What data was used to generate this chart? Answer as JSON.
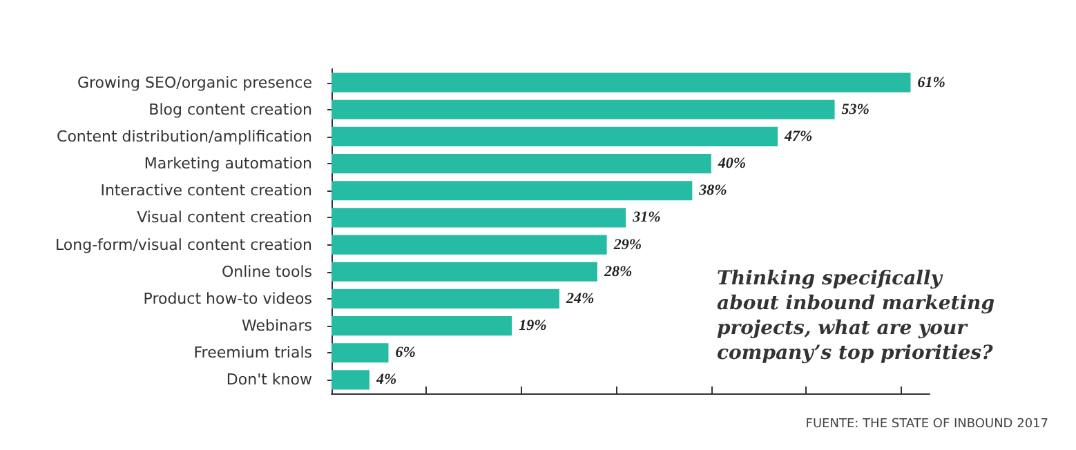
{
  "chart_data": {
    "type": "bar",
    "orientation": "horizontal",
    "title": "Thinking specifically\nabout inbound marketing\nprojects, what are your\ncompany’s top priorities?",
    "categories": [
      "Growing SEO/organic presence",
      "Blog content creation",
      "Content distribution/amplification",
      "Marketing automation",
      "Interactive content creation",
      "Visual content creation",
      "Long-form/visual content creation",
      "Online tools",
      "Product how-to videos",
      "Webinars",
      "Freemium trials",
      "Don't know"
    ],
    "values": [
      61,
      53,
      47,
      40,
      38,
      31,
      29,
      28,
      24,
      19,
      6,
      4
    ],
    "value_labels": [
      "61%",
      "53%",
      "47%",
      "40%",
      "38%",
      "31%",
      "29%",
      "28%",
      "24%",
      "19%",
      "6%",
      "4%"
    ],
    "color": "#26bba3",
    "xlim": [
      0,
      63
    ],
    "xticks": [
      {
        "value": 0,
        "label": null
      },
      {
        "value": 10,
        "label": null
      },
      {
        "value": 20,
        "label": null
      },
      {
        "value": 30,
        "label": null
      },
      {
        "value": 40,
        "label": null
      },
      {
        "value": 50,
        "label": null
      },
      {
        "value": 60,
        "label": null
      }
    ],
    "tick_labels": "y",
    "grid": false,
    "annotations": [
      "FUENTE: THE STATE OF INBOUND 2017"
    ]
  }
}
